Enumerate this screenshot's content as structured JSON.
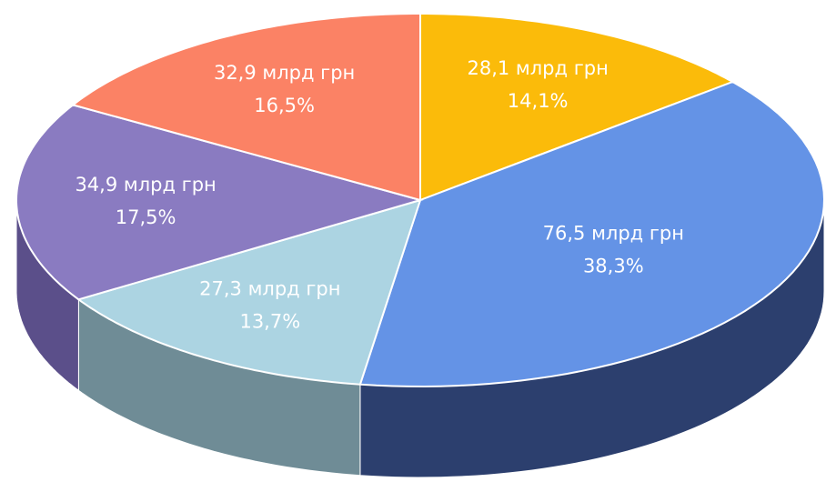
{
  "chart_data": {
    "type": "pie",
    "values": [
      28.1,
      76.5,
      27.3,
      34.9,
      32.9
    ],
    "value_labels": [
      "28,1 млрд грн",
      "76,5 млрд грн",
      "27,3 млрд грн",
      "34,9 млрд грн",
      "32,9 млрд грн"
    ],
    "percents": [
      14.1,
      38.3,
      13.7,
      17.5,
      16.5
    ],
    "percent_labels": [
      "14,1%",
      "38,3%",
      "13,7%",
      "17,5%",
      "16,5%"
    ],
    "colors": [
      "#fbbb0a",
      "#6493e6",
      "#acd4e2",
      "#8a7bc1",
      "#fb8265"
    ],
    "side_colors": [
      "#a97c00",
      "#2c3f6e",
      "#6f8c96",
      "#5b4f8a",
      "#a8523e"
    ]
  }
}
